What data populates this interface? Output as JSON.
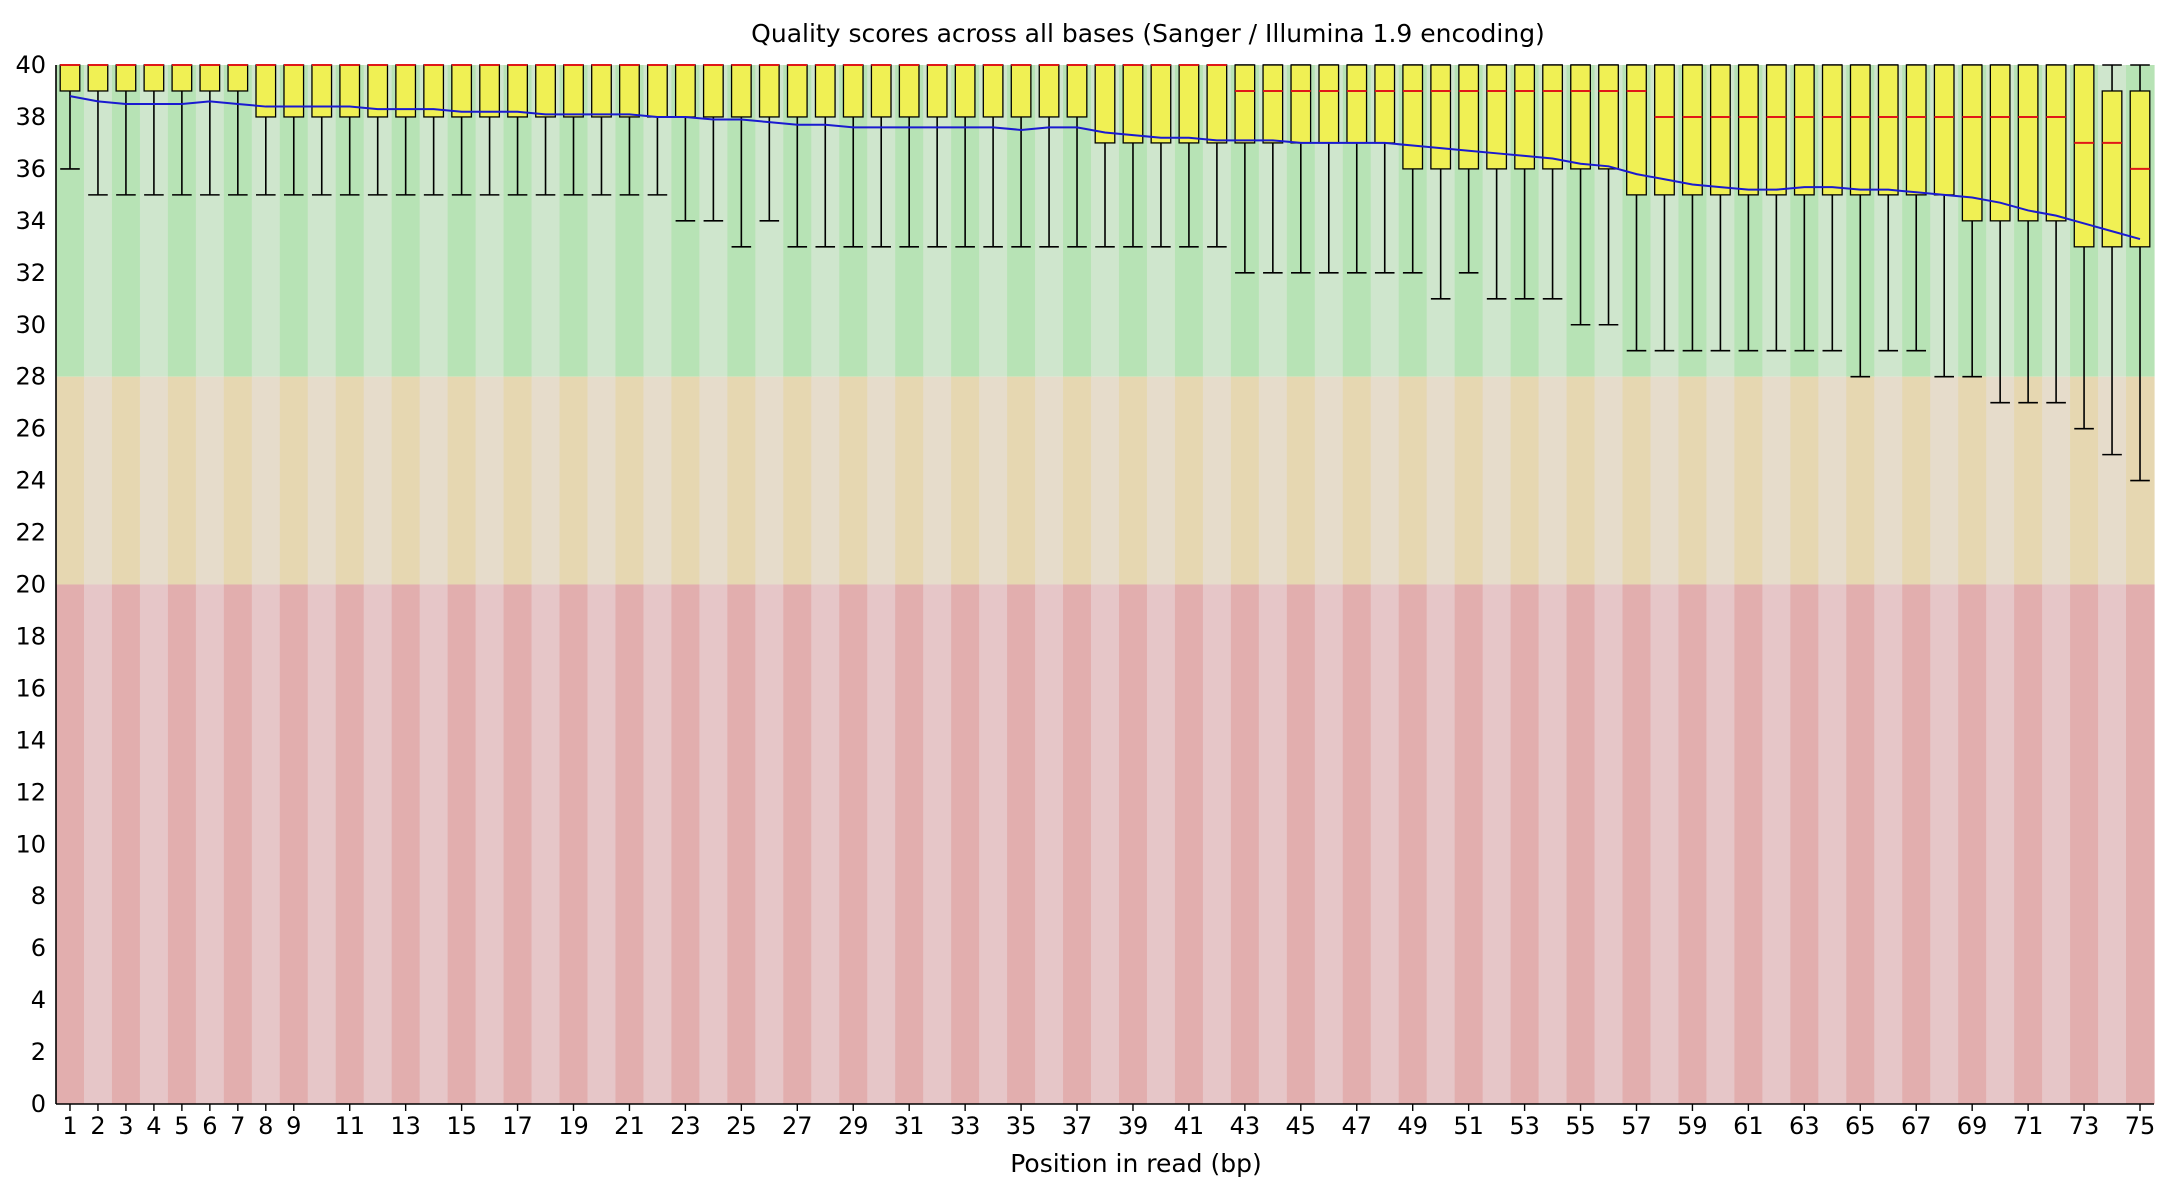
{
  "chart_data": {
    "type": "boxplot",
    "title": "Quality scores across all bases (Sanger / Illumina 1.9 encoding)",
    "xlabel": "Position in read (bp)",
    "ylabel": "",
    "ylim": [
      0,
      40
    ],
    "yticks": [
      0,
      2,
      4,
      6,
      8,
      10,
      12,
      14,
      16,
      18,
      20,
      22,
      24,
      26,
      28,
      30,
      32,
      34,
      36,
      38,
      40
    ],
    "x_tick_labels": [
      "1",
      "2",
      "3",
      "4",
      "5",
      "6",
      "7",
      "8",
      "9",
      "11",
      "13",
      "15",
      "17",
      "19",
      "21",
      "23",
      "25",
      "27",
      "29",
      "31",
      "33",
      "35",
      "37",
      "39",
      "41",
      "43",
      "45",
      "47",
      "49",
      "51",
      "53",
      "55",
      "57",
      "59",
      "61",
      "63",
      "65",
      "67",
      "69",
      "71",
      "73",
      "75"
    ],
    "x_tick_positions": [
      1,
      2,
      3,
      4,
      5,
      6,
      7,
      8,
      9,
      11,
      13,
      15,
      17,
      19,
      21,
      23,
      25,
      27,
      29,
      31,
      33,
      35,
      37,
      39,
      41,
      43,
      45,
      47,
      49,
      51,
      53,
      55,
      57,
      59,
      61,
      63,
      65,
      67,
      69,
      71,
      73,
      75
    ],
    "bands": [
      {
        "name": "good",
        "from": 28,
        "to": 40,
        "color": "#b7e3b5",
        "alt_color": "#cfe6cd"
      },
      {
        "name": "reasonable",
        "from": 20,
        "to": 28,
        "color": "#e6d7b1",
        "alt_color": "#e6dccb"
      },
      {
        "name": "poor",
        "from": 0,
        "to": 20,
        "color": "#e2aeae",
        "alt_color": "#e6c6c8"
      }
    ],
    "colors": {
      "box": "#f0f054",
      "median": "#e01818",
      "mean_line": "#1a1ad0",
      "whisker": "#000000"
    },
    "positions": [
      1,
      2,
      3,
      4,
      5,
      6,
      7,
      8,
      9,
      10,
      11,
      12,
      13,
      14,
      15,
      16,
      17,
      18,
      19,
      20,
      21,
      22,
      23,
      24,
      25,
      26,
      27,
      28,
      29,
      30,
      31,
      32,
      33,
      34,
      35,
      36,
      37,
      38,
      39,
      40,
      41,
      42,
      43,
      44,
      45,
      46,
      47,
      48,
      49,
      50,
      51,
      52,
      53,
      54,
      55,
      56,
      57,
      58,
      59,
      60,
      61,
      62,
      63,
      64,
      65,
      66,
      67,
      68,
      69,
      70,
      71,
      72,
      73,
      74,
      75
    ],
    "median": [
      40,
      40,
      40,
      40,
      40,
      40,
      40,
      40,
      40,
      40,
      40,
      40,
      40,
      40,
      40,
      40,
      40,
      40,
      40,
      40,
      40,
      40,
      40,
      40,
      40,
      40,
      40,
      40,
      40,
      40,
      40,
      40,
      40,
      40,
      40,
      40,
      40,
      40,
      40,
      40,
      40,
      40,
      39,
      39,
      39,
      39,
      39,
      39,
      39,
      39,
      39,
      39,
      39,
      39,
      39,
      39,
      39,
      38,
      38,
      38,
      38,
      38,
      38,
      38,
      38,
      38,
      38,
      38,
      38,
      38,
      38,
      38,
      37,
      37,
      36
    ],
    "q1": [
      39,
      39,
      39,
      39,
      39,
      39,
      39,
      38,
      38,
      38,
      38,
      38,
      38,
      38,
      38,
      38,
      38,
      38,
      38,
      38,
      38,
      38,
      38,
      38,
      38,
      38,
      38,
      38,
      38,
      38,
      38,
      38,
      38,
      38,
      38,
      38,
      38,
      37,
      37,
      37,
      37,
      37,
      37,
      37,
      37,
      37,
      37,
      37,
      36,
      36,
      36,
      36,
      36,
      36,
      36,
      36,
      35,
      35,
      35,
      35,
      35,
      35,
      35,
      35,
      35,
      35,
      35,
      35,
      34,
      34,
      34,
      34,
      33,
      33,
      33
    ],
    "q3": [
      40,
      40,
      40,
      40,
      40,
      40,
      40,
      40,
      40,
      40,
      40,
      40,
      40,
      40,
      40,
      40,
      40,
      40,
      40,
      40,
      40,
      40,
      40,
      40,
      40,
      40,
      40,
      40,
      40,
      40,
      40,
      40,
      40,
      40,
      40,
      40,
      40,
      40,
      40,
      40,
      40,
      40,
      40,
      40,
      40,
      40,
      40,
      40,
      40,
      40,
      40,
      40,
      40,
      40,
      40,
      40,
      40,
      40,
      40,
      40,
      40,
      40,
      40,
      40,
      40,
      40,
      40,
      40,
      40,
      40,
      40,
      40,
      40,
      39,
      39
    ],
    "whisker_low": [
      36,
      35,
      35,
      35,
      35,
      35,
      35,
      35,
      35,
      35,
      35,
      35,
      35,
      35,
      35,
      35,
      35,
      35,
      35,
      35,
      35,
      35,
      34,
      34,
      33,
      34,
      33,
      33,
      33,
      33,
      33,
      33,
      33,
      33,
      33,
      33,
      33,
      33,
      33,
      33,
      33,
      33,
      32,
      32,
      32,
      32,
      32,
      32,
      32,
      31,
      32,
      31,
      31,
      31,
      30,
      30,
      29,
      29,
      29,
      29,
      29,
      29,
      29,
      29,
      28,
      29,
      29,
      28,
      28,
      27,
      27,
      27,
      26,
      25,
      24
    ],
    "whisker_high": [
      40,
      40,
      40,
      40,
      40,
      40,
      40,
      40,
      40,
      40,
      40,
      40,
      40,
      40,
      40,
      40,
      40,
      40,
      40,
      40,
      40,
      40,
      40,
      40,
      40,
      40,
      40,
      40,
      40,
      40,
      40,
      40,
      40,
      40,
      40,
      40,
      40,
      40,
      40,
      40,
      40,
      40,
      40,
      40,
      40,
      40,
      40,
      40,
      40,
      40,
      40,
      40,
      40,
      40,
      40,
      40,
      40,
      40,
      40,
      40,
      40,
      40,
      40,
      40,
      40,
      40,
      40,
      40,
      40,
      40,
      40,
      40,
      40,
      40,
      40
    ],
    "mean": [
      38.8,
      38.6,
      38.5,
      38.5,
      38.5,
      38.6,
      38.5,
      38.4,
      38.4,
      38.4,
      38.4,
      38.3,
      38.3,
      38.3,
      38.2,
      38.2,
      38.2,
      38.1,
      38.1,
      38.1,
      38.1,
      38.0,
      38.0,
      37.9,
      37.9,
      37.8,
      37.7,
      37.7,
      37.6,
      37.6,
      37.6,
      37.6,
      37.6,
      37.6,
      37.5,
      37.6,
      37.6,
      37.4,
      37.3,
      37.2,
      37.2,
      37.1,
      37.1,
      37.1,
      37.0,
      37.0,
      37.0,
      37.0,
      36.9,
      36.8,
      36.7,
      36.6,
      36.5,
      36.4,
      36.2,
      36.1,
      35.8,
      35.6,
      35.4,
      35.3,
      35.2,
      35.2,
      35.3,
      35.3,
      35.2,
      35.2,
      35.1,
      35.0,
      34.9,
      34.7,
      34.4,
      34.2,
      33.9,
      33.6,
      33.3
    ]
  }
}
